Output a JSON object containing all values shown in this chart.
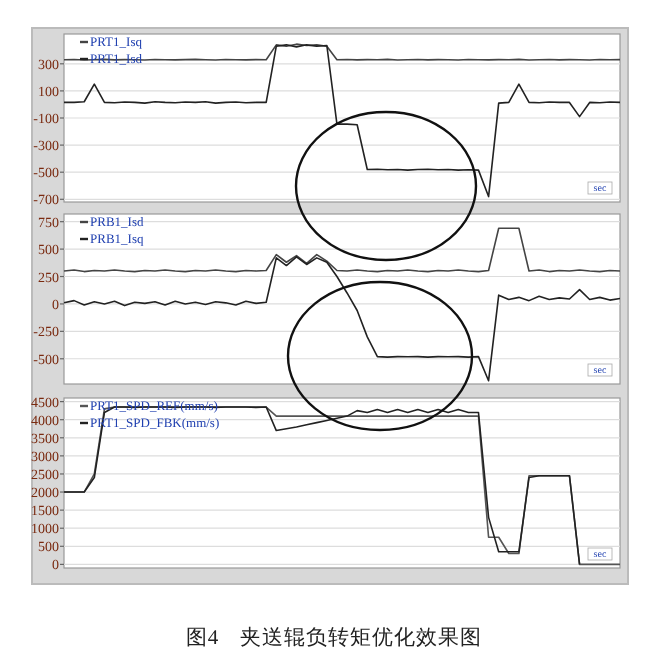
{
  "chart_data": [
    {
      "type": "line",
      "categories": [
        null,
        null,
        null,
        null,
        null,
        null,
        null,
        null,
        null,
        null,
        null,
        null,
        null,
        null,
        null,
        null,
        null,
        null,
        null,
        null,
        null,
        null,
        null,
        null,
        null,
        null,
        null,
        null,
        null,
        null,
        null,
        null,
        null,
        null,
        null,
        null,
        null,
        null,
        null,
        null,
        null,
        null,
        null,
        null,
        null,
        null,
        null,
        null,
        null,
        null,
        null,
        null,
        null,
        null,
        null,
        null
      ],
      "series": [
        {
          "name": "PRT1_Isq",
          "color": "#444444",
          "values": [
            330,
            332,
            328,
            330,
            333,
            329,
            331,
            330,
            328,
            332,
            330,
            329,
            331,
            333,
            330,
            328,
            332,
            330,
            329,
            331,
            330,
            440,
            430,
            445,
            435,
            440,
            430,
            330,
            332,
            329,
            331,
            330,
            333,
            328,
            330,
            332,
            329,
            331,
            330,
            328,
            332,
            330,
            329,
            331,
            330,
            333,
            328,
            330,
            332,
            329,
            331,
            330,
            328,
            332,
            330,
            331
          ]
        },
        {
          "name": "PRT1_Isd",
          "color": "#222222",
          "values": [
            15,
            15,
            20,
            150,
            15,
            12,
            18,
            15,
            10,
            20,
            15,
            12,
            18,
            15,
            20,
            10,
            15,
            18,
            12,
            15,
            15,
            430,
            440,
            425,
            440,
            430,
            435,
            -145,
            -145,
            -150,
            -480,
            -478,
            -482,
            -480,
            -485,
            -480,
            -478,
            -482,
            -480,
            -485,
            -482,
            -485,
            -680,
            10,
            15,
            150,
            15,
            12,
            18,
            15,
            15,
            -90,
            15,
            12,
            18,
            15
          ]
        }
      ],
      "ylim": [
        -720,
        520
      ],
      "yticks": [
        300,
        100,
        -100,
        -300,
        -500,
        -700
      ],
      "grid": "y",
      "legend": "top left",
      "tick_labels": "y",
      "marker": "none",
      "line_style": "solid",
      "annotations": [
        "sec"
      ]
    },
    {
      "type": "line",
      "categories": [
        null,
        null,
        null,
        null,
        null,
        null,
        null,
        null,
        null,
        null,
        null,
        null,
        null,
        null,
        null,
        null,
        null,
        null,
        null,
        null,
        null,
        null,
        null,
        null,
        null,
        null,
        null,
        null,
        null,
        null,
        null,
        null,
        null,
        null,
        null,
        null,
        null,
        null,
        null,
        null,
        null,
        null,
        null,
        null,
        null,
        null,
        null,
        null,
        null,
        null,
        null,
        null,
        null,
        null,
        null,
        null
      ],
      "series": [
        {
          "name": "PRB1_Isd",
          "color": "#444444",
          "values": [
            300,
            310,
            295,
            305,
            300,
            310,
            300,
            295,
            305,
            300,
            310,
            300,
            295,
            305,
            300,
            310,
            300,
            295,
            305,
            300,
            305,
            450,
            380,
            440,
            370,
            450,
            390,
            305,
            300,
            310,
            300,
            295,
            305,
            300,
            310,
            300,
            295,
            305,
            300,
            310,
            300,
            295,
            305,
            690,
            690,
            690,
            300,
            310,
            295,
            305,
            300,
            310,
            300,
            295,
            305,
            300
          ]
        },
        {
          "name": "PRB1_Isq",
          "color": "#222222",
          "values": [
            10,
            30,
            -10,
            20,
            0,
            25,
            -15,
            15,
            5,
            20,
            -10,
            25,
            0,
            15,
            -5,
            20,
            10,
            -10,
            25,
            5,
            15,
            420,
            350,
            430,
            360,
            420,
            380,
            250,
            100,
            -60,
            -300,
            -480,
            -485,
            -480,
            -482,
            -480,
            -485,
            -480,
            -482,
            -480,
            -485,
            -480,
            -700,
            80,
            40,
            60,
            30,
            70,
            40,
            55,
            45,
            130,
            40,
            60,
            35,
            50
          ]
        }
      ],
      "ylim": [
        -730,
        820
      ],
      "yticks": [
        750,
        500,
        250,
        0,
        -250,
        -500
      ],
      "grid": "y",
      "legend": "top left",
      "tick_labels": "y",
      "marker": "none",
      "line_style": "solid",
      "annotations": [
        "sec"
      ]
    },
    {
      "type": "line",
      "categories": [
        null,
        null,
        null,
        null,
        null,
        null,
        null,
        null,
        null,
        null,
        null,
        null,
        null,
        null,
        null,
        null,
        null,
        null,
        null,
        null,
        null,
        null,
        null,
        null,
        null,
        null,
        null,
        null,
        null,
        null,
        null,
        null,
        null,
        null,
        null,
        null,
        null,
        null,
        null,
        null,
        null,
        null,
        null,
        null,
        null,
        null,
        null,
        null,
        null,
        null,
        null,
        null,
        null,
        null,
        null,
        null
      ],
      "series": [
        {
          "name": "PRT1_SPD_REF(mm/s)",
          "color": "#555555",
          "values": [
            2000,
            2000,
            2000,
            2500,
            4300,
            4350,
            4350,
            4350,
            4350,
            4350,
            4350,
            4350,
            4350,
            4350,
            4350,
            4350,
            4350,
            4350,
            4350,
            4350,
            4350,
            4100,
            4100,
            4100,
            4100,
            4100,
            4100,
            4100,
            4100,
            4100,
            4100,
            4100,
            4100,
            4100,
            4100,
            4100,
            4100,
            4100,
            4100,
            4100,
            4100,
            4100,
            750,
            750,
            300,
            300,
            2450,
            2450,
            2450,
            2450,
            2450,
            0,
            0,
            0,
            0,
            0
          ]
        },
        {
          "name": "PRT1_SPD_FBK(mm/s)",
          "color": "#222222",
          "values": [
            2000,
            2000,
            2000,
            2400,
            4200,
            4350,
            4350,
            4340,
            4350,
            4350,
            4350,
            4340,
            4350,
            4350,
            4350,
            4340,
            4350,
            4350,
            4350,
            4340,
            4350,
            3700,
            3750,
            3800,
            3860,
            3920,
            3980,
            4040,
            4100,
            4250,
            4200,
            4280,
            4200,
            4280,
            4200,
            4280,
            4200,
            4280,
            4200,
            4280,
            4200,
            4200,
            1300,
            350,
            350,
            350,
            2400,
            2450,
            2450,
            2450,
            2450,
            0,
            null,
            null,
            null,
            null
          ]
        }
      ],
      "ylim": [
        -100,
        4600
      ],
      "yticks": [
        4500,
        4000,
        3500,
        3000,
        2500,
        2000,
        1500,
        1000,
        500,
        0
      ],
      "grid": "y",
      "legend": "top left",
      "tick_labels": "y",
      "marker": "none",
      "line_style": "solid",
      "annotations": [
        "sec",
        "图4　夹送辊负转矩优化效果图"
      ]
    }
  ]
}
